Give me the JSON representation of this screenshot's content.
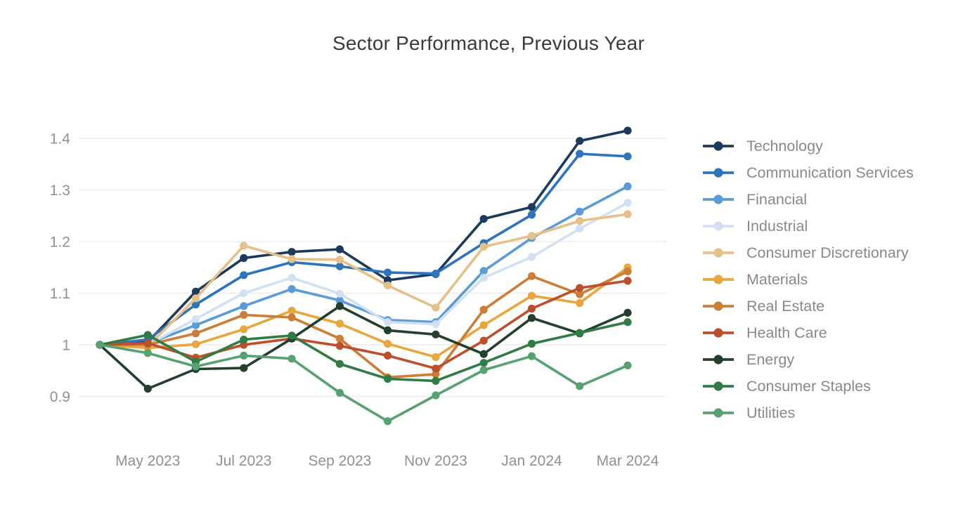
{
  "chart_data": {
    "type": "line",
    "title": "Sector Performance, Previous Year",
    "x_tick_labels": [
      "May 2023",
      "Jul 2023",
      "Sep 2023",
      "Nov 2023",
      "Jan 2024",
      "Mar 2024"
    ],
    "x_tick_month_indices": [
      1,
      3,
      5,
      7,
      9,
      11
    ],
    "x_point_count": 12,
    "y_tick_labels": [
      "0.9",
      "1",
      "1.1",
      "1.2",
      "1.3",
      "1.4"
    ],
    "y_ticks": [
      0.9,
      1.0,
      1.1,
      1.2,
      1.3,
      1.4
    ],
    "ylim": [
      0.835,
      1.45
    ],
    "grid": "horizontal",
    "legend_position": "right",
    "series": [
      {
        "name": "Technology",
        "color": "#1c3a5e",
        "values": [
          1.0,
          1.005,
          1.103,
          1.168,
          1.18,
          1.185,
          1.125,
          1.137,
          1.244,
          1.267,
          1.395,
          1.415
        ]
      },
      {
        "name": "Communication Services",
        "color": "#2c74be",
        "values": [
          1.0,
          1.01,
          1.078,
          1.135,
          1.16,
          1.152,
          1.14,
          1.138,
          1.197,
          1.252,
          1.37,
          1.365
        ]
      },
      {
        "name": "Financial",
        "color": "#5b9bd8",
        "values": [
          1.0,
          1.002,
          1.038,
          1.075,
          1.108,
          1.086,
          1.048,
          1.044,
          1.143,
          1.207,
          1.258,
          1.307
        ]
      },
      {
        "name": "Industrial",
        "color": "#d2e0f3",
        "values": [
          1.0,
          1.0,
          1.05,
          1.1,
          1.13,
          1.099,
          1.044,
          1.04,
          1.13,
          1.17,
          1.225,
          1.275
        ]
      },
      {
        "name": "Consumer Discretionary",
        "color": "#e6c088",
        "values": [
          1.0,
          0.997,
          1.09,
          1.192,
          1.166,
          1.165,
          1.115,
          1.072,
          1.19,
          1.211,
          1.24,
          1.253
        ]
      },
      {
        "name": "Materials",
        "color": "#e8a63d",
        "values": [
          1.0,
          0.994,
          1.001,
          1.03,
          1.066,
          1.041,
          1.002,
          0.976,
          1.038,
          1.095,
          1.081,
          1.15
        ]
      },
      {
        "name": "Real Estate",
        "color": "#cd7d35",
        "values": [
          1.0,
          1.0,
          1.022,
          1.058,
          1.053,
          1.012,
          0.937,
          0.943,
          1.068,
          1.133,
          1.098,
          1.142
        ]
      },
      {
        "name": "Health Care",
        "color": "#bd4f2d",
        "values": [
          1.0,
          1.003,
          0.975,
          1.0,
          1.012,
          0.998,
          0.979,
          0.954,
          1.008,
          1.07,
          1.11,
          1.124
        ]
      },
      {
        "name": "Energy",
        "color": "#22402b",
        "values": [
          1.0,
          0.915,
          0.953,
          0.955,
          1.012,
          1.075,
          1.028,
          1.02,
          0.982,
          1.052,
          1.022,
          1.062
        ]
      },
      {
        "name": "Consumer Staples",
        "color": "#2f7d44",
        "values": [
          1.0,
          1.019,
          0.967,
          1.01,
          1.018,
          0.963,
          0.934,
          0.93,
          0.965,
          1.002,
          1.023,
          1.044
        ]
      },
      {
        "name": "Utilities",
        "color": "#57a271",
        "values": [
          1.0,
          0.984,
          0.958,
          0.979,
          0.973,
          0.907,
          0.852,
          0.902,
          0.951,
          0.978,
          0.92,
          0.96
        ]
      }
    ]
  }
}
